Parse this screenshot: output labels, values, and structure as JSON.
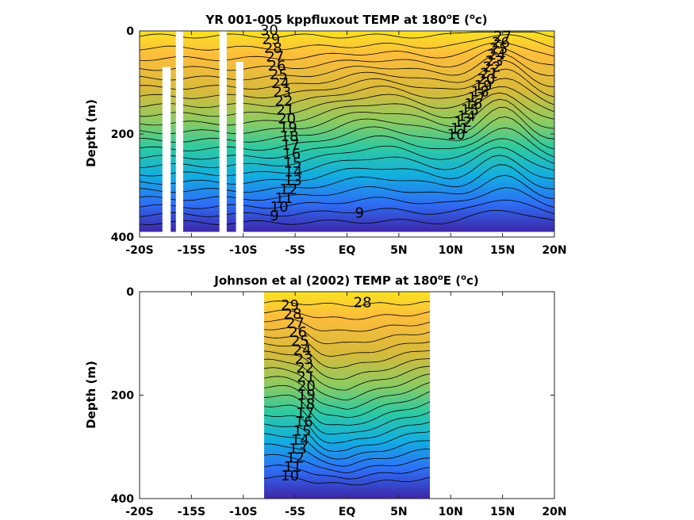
{
  "chart_data": [
    {
      "type": "heatmap",
      "subtype": "filled-contour",
      "title": "YR 001-005 kppfluxout TEMP at 180",
      "title_sup": "o",
      "title_tail": "E (",
      "title_unit_sup": "o",
      "title_unit": "c)",
      "ylabel": "Depth (m)",
      "xlabel": "",
      "xlim": [
        -20,
        20
      ],
      "ylim": [
        0,
        400
      ],
      "y_reversed": true,
      "xticks": [
        -20,
        -15,
        -10,
        -5,
        0,
        5,
        10,
        15,
        20
      ],
      "xticklabels": [
        "-20S",
        "-15S",
        "-10S",
        "-5S",
        "EQ",
        "5N",
        "10N",
        "15N",
        "20N"
      ],
      "yticks": [
        0,
        200,
        400
      ],
      "yticklabels": [
        "0",
        "200",
        "400"
      ],
      "data_extent_x": [
        -20,
        20
      ],
      "data_extent_y": [
        0,
        390
      ],
      "colormap": [
        "#3e26a8",
        "#2e6ef5",
        "#12aee0",
        "#2fcaa0",
        "#8ccb61",
        "#d7ba3b",
        "#fdbd3c",
        "#f9e221"
      ],
      "surface_temp": 30,
      "deep_temp": 8.5,
      "contour_levels": [
        9,
        10,
        11,
        12,
        13,
        14,
        15,
        16,
        17,
        18,
        19,
        20,
        21,
        22,
        23,
        24,
        25,
        26,
        27,
        28,
        29,
        30
      ],
      "contour_labels_left": [
        "30",
        "29",
        "28",
        "27",
        "26",
        "25",
        "24",
        "23",
        "22",
        "21",
        "20",
        "19",
        "18",
        "17",
        "16",
        "15",
        "14",
        "13",
        "12",
        "11",
        "10",
        "9"
      ],
      "contour_labels_right": [
        "27",
        "26",
        "25",
        "24",
        "23",
        "22",
        "21",
        "20",
        "19",
        "18",
        "17",
        "16",
        "15",
        "14",
        "12",
        "11",
        "10"
      ],
      "contour_labels_center": [
        "9"
      ],
      "data_gaps": [
        {
          "x0": -17.8,
          "x1": -17.0,
          "y0": 70
        },
        {
          "x0": -16.5,
          "x1": -15.8,
          "y0": 0
        },
        {
          "x0": -12.3,
          "x1": -11.6,
          "y0": 0
        },
        {
          "x0": -10.7,
          "x1": -10.0,
          "y0": 60
        }
      ]
    },
    {
      "type": "heatmap",
      "subtype": "filled-contour",
      "title": "Johnson et al (2002) TEMP at 180",
      "title_sup": "o",
      "title_tail": "E (",
      "title_unit_sup": "o",
      "title_unit": "c)",
      "ylabel": "Depth (m)",
      "xlabel": "",
      "xlim": [
        -20,
        20
      ],
      "ylim": [
        0,
        400
      ],
      "y_reversed": true,
      "xticks": [
        -20,
        -15,
        -10,
        -5,
        0,
        5,
        10,
        15,
        20
      ],
      "xticklabels": [
        "-20S",
        "-15S",
        "-10S",
        "-5S",
        "EQ",
        "5N",
        "10N",
        "15N",
        "20N"
      ],
      "yticks": [
        0,
        200,
        400
      ],
      "yticklabels": [
        "0",
        "200",
        "400"
      ],
      "data_extent_x": [
        -8,
        8
      ],
      "data_extent_y": [
        0,
        400
      ],
      "colormap": [
        "#3e26a8",
        "#2e6ef5",
        "#12aee0",
        "#2fcaa0",
        "#8ccb61",
        "#d7ba3b",
        "#fdbd3c",
        "#f9e221"
      ],
      "surface_temp": 29.5,
      "deep_temp": 8.5,
      "contour_levels": [
        10,
        11,
        12,
        13,
        14,
        15,
        16,
        17,
        18,
        19,
        20,
        21,
        22,
        23,
        24,
        25,
        26,
        27,
        28,
        29
      ],
      "contour_labels_left": [
        "29",
        "28",
        "27",
        "26",
        "25",
        "24",
        "23",
        "22",
        "21",
        "20",
        "19",
        "18",
        "17",
        "16",
        "15",
        "14",
        "13",
        "12",
        "11",
        "10"
      ],
      "contour_labels_right": [
        "28"
      ],
      "contour_labels_center": []
    }
  ]
}
